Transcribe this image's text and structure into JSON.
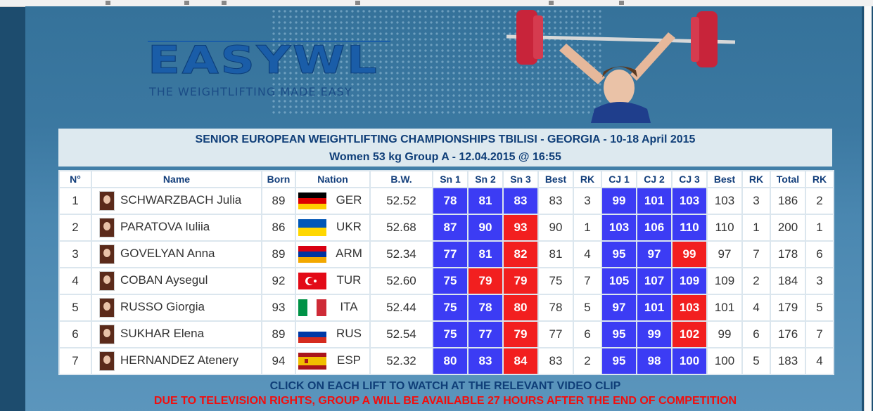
{
  "logo": {
    "text": "EASYWL",
    "tagline": "THE WEIGHTLIFTING MADE EASY"
  },
  "header": {
    "title": "SENIOR EUROPEAN WEIGHTLIFTING CHAMPIONSHIPS TBILISI - GEORGIA - 10-18 April 2015",
    "subtitle": "Women 53 kg Group A - 12.04.2015 @ 16:55"
  },
  "columns": [
    "N°",
    "Name",
    "Born",
    "Nation",
    "B.W.",
    "Sn 1",
    "Sn 2",
    "Sn 3",
    "Best",
    "RK",
    "CJ 1",
    "CJ 2",
    "CJ 3",
    "Best",
    "RK",
    "Total",
    "RK"
  ],
  "colors": {
    "good_lift": "#3c3cf4",
    "no_lift": "#f21f1f",
    "header_text": "#0f3e78",
    "notice_red": "#f20d0d"
  },
  "athletes": [
    {
      "n": "1",
      "name": "SCHWARZBACH Julia",
      "born": "89",
      "flag": "GER",
      "nation": "GER",
      "bw": "52.52",
      "sn": [
        {
          "v": "78",
          "r": "ok"
        },
        {
          "v": "81",
          "r": "ok"
        },
        {
          "v": "83",
          "r": "ok"
        }
      ],
      "sn_best": "83",
      "sn_rk": "3",
      "cj": [
        {
          "v": "99",
          "r": "ok"
        },
        {
          "v": "101",
          "r": "ok"
        },
        {
          "v": "103",
          "r": "ok"
        }
      ],
      "cj_best": "103",
      "cj_rk": "3",
      "total": "186",
      "rk": "2"
    },
    {
      "n": "2",
      "name": "PARATOVA Iuliia",
      "born": "86",
      "flag": "UKR",
      "nation": "UKR",
      "bw": "52.68",
      "sn": [
        {
          "v": "87",
          "r": "ok"
        },
        {
          "v": "90",
          "r": "ok"
        },
        {
          "v": "93",
          "r": "fail"
        }
      ],
      "sn_best": "90",
      "sn_rk": "1",
      "cj": [
        {
          "v": "103",
          "r": "ok"
        },
        {
          "v": "106",
          "r": "ok"
        },
        {
          "v": "110",
          "r": "ok"
        }
      ],
      "cj_best": "110",
      "cj_rk": "1",
      "total": "200",
      "rk": "1"
    },
    {
      "n": "3",
      "name": "GOVELYAN Anna",
      "born": "89",
      "flag": "ARM",
      "nation": "ARM",
      "bw": "52.34",
      "sn": [
        {
          "v": "77",
          "r": "ok"
        },
        {
          "v": "81",
          "r": "ok"
        },
        {
          "v": "82",
          "r": "fail"
        }
      ],
      "sn_best": "81",
      "sn_rk": "4",
      "cj": [
        {
          "v": "95",
          "r": "ok"
        },
        {
          "v": "97",
          "r": "ok"
        },
        {
          "v": "99",
          "r": "fail"
        }
      ],
      "cj_best": "97",
      "cj_rk": "7",
      "total": "178",
      "rk": "6"
    },
    {
      "n": "4",
      "name": "COBAN Aysegul",
      "born": "92",
      "flag": "TUR",
      "nation": "TUR",
      "bw": "52.60",
      "sn": [
        {
          "v": "75",
          "r": "ok"
        },
        {
          "v": "79",
          "r": "fail"
        },
        {
          "v": "79",
          "r": "fail"
        }
      ],
      "sn_best": "75",
      "sn_rk": "7",
      "cj": [
        {
          "v": "105",
          "r": "ok"
        },
        {
          "v": "107",
          "r": "ok"
        },
        {
          "v": "109",
          "r": "ok"
        }
      ],
      "cj_best": "109",
      "cj_rk": "2",
      "total": "184",
      "rk": "3"
    },
    {
      "n": "5",
      "name": "RUSSO Giorgia",
      "born": "93",
      "flag": "ITA",
      "nation": "ITA",
      "bw": "52.44",
      "sn": [
        {
          "v": "75",
          "r": "ok"
        },
        {
          "v": "78",
          "r": "ok"
        },
        {
          "v": "80",
          "r": "fail"
        }
      ],
      "sn_best": "78",
      "sn_rk": "5",
      "cj": [
        {
          "v": "97",
          "r": "ok"
        },
        {
          "v": "101",
          "r": "ok"
        },
        {
          "v": "103",
          "r": "fail"
        }
      ],
      "cj_best": "101",
      "cj_rk": "4",
      "total": "179",
      "rk": "5"
    },
    {
      "n": "6",
      "name": "SUKHAR Elena",
      "born": "89",
      "flag": "RUS",
      "nation": "RUS",
      "bw": "52.54",
      "sn": [
        {
          "v": "75",
          "r": "ok"
        },
        {
          "v": "77",
          "r": "ok"
        },
        {
          "v": "79",
          "r": "fail"
        }
      ],
      "sn_best": "77",
      "sn_rk": "6",
      "cj": [
        {
          "v": "95",
          "r": "ok"
        },
        {
          "v": "99",
          "r": "ok"
        },
        {
          "v": "102",
          "r": "fail"
        }
      ],
      "cj_best": "99",
      "cj_rk": "6",
      "total": "176",
      "rk": "7"
    },
    {
      "n": "7",
      "name": "HERNANDEZ Atenery",
      "born": "94",
      "flag": "ESP",
      "nation": "ESP",
      "bw": "52.32",
      "sn": [
        {
          "v": "80",
          "r": "ok"
        },
        {
          "v": "83",
          "r": "ok"
        },
        {
          "v": "84",
          "r": "fail"
        }
      ],
      "sn_best": "83",
      "sn_rk": "2",
      "cj": [
        {
          "v": "95",
          "r": "ok"
        },
        {
          "v": "98",
          "r": "ok"
        },
        {
          "v": "100",
          "r": "ok"
        }
      ],
      "cj_best": "100",
      "cj_rk": "5",
      "total": "183",
      "rk": "4"
    }
  ],
  "notices": {
    "video": "CLICK ON EACH LIFT TO WATCH AT THE RELEVANT VIDEO CLIP",
    "tv": "DUE TO TELEVISION RIGHTS, GROUP A WILL BE AVAILABLE 27 HOURS AFTER THE END OF COMPETITION"
  }
}
